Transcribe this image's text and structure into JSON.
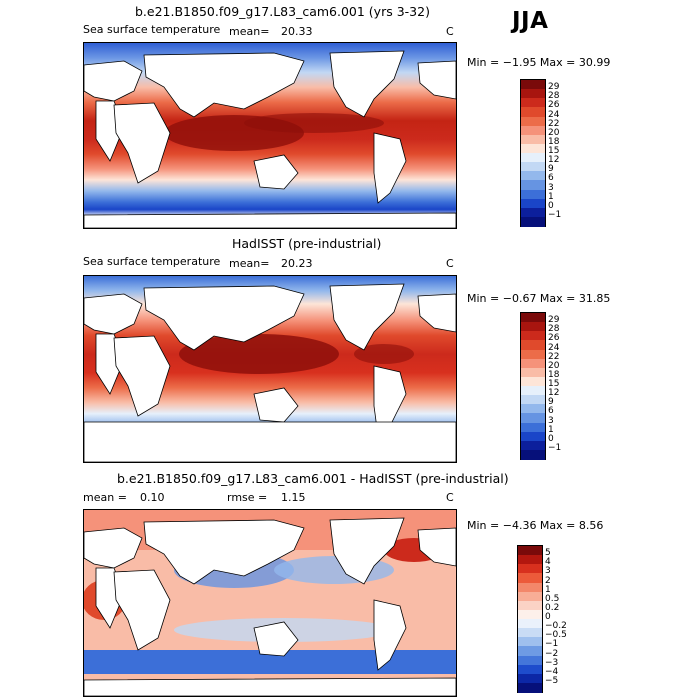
{
  "season": "JJA",
  "panels": [
    {
      "id": "model",
      "title": "b.e21.B1850.f09_g17.L83_cam6.001 (yrs 3-32)",
      "variable": "Sea surface temperature",
      "mean_label": "mean=",
      "mean_value": "20.33",
      "units": "C",
      "min_max": "Min =  −1.95  Max =   30.99",
      "colorbar_labels": [
        "29",
        "28",
        "26",
        "24",
        "22",
        "20",
        "18",
        "15",
        "12",
        "9",
        "6",
        "3",
        "1",
        "0",
        "−1"
      ],
      "colorbar_colors": [
        "#7a0a0a",
        "#a8150f",
        "#cc2a1c",
        "#e04a2c",
        "#ec6c49",
        "#f5927a",
        "#f9bca7",
        "#fde5d8",
        "#e6f0fb",
        "#c2d8f4",
        "#93b8ec",
        "#6694e2",
        "#3c6fd8",
        "#1a45c8",
        "#0c1f9c",
        "#06107a"
      ]
    },
    {
      "id": "obs",
      "title": "HadISST (pre-industrial)",
      "variable": "Sea surface temperature",
      "mean_label": "mean=",
      "mean_value": "20.23",
      "units": "C",
      "min_max": "Min =  −0.67  Max =   31.85",
      "colorbar_labels": [
        "29",
        "28",
        "26",
        "24",
        "22",
        "20",
        "18",
        "15",
        "12",
        "9",
        "6",
        "3",
        "1",
        "0",
        "−1"
      ],
      "colorbar_colors": [
        "#7a0a0a",
        "#a8150f",
        "#cc2a1c",
        "#e04a2c",
        "#ec6c49",
        "#f5927a",
        "#f9bca7",
        "#fde5d8",
        "#e6f0fb",
        "#c2d8f4",
        "#93b8ec",
        "#6694e2",
        "#3c6fd8",
        "#1a45c8",
        "#0c1f9c",
        "#06107a"
      ]
    },
    {
      "id": "diff",
      "title": "b.e21.B1850.f09_g17.L83_cam6.001 - HadISST (pre-industrial)",
      "mean_label": "mean =",
      "mean_value": "0.10",
      "rmse_label": "rmse =",
      "rmse_value": "1.15",
      "units": "C",
      "min_max": "Min =  −4.36  Max =    8.56",
      "colorbar_labels": [
        "5",
        "4",
        "3",
        "2",
        "1",
        "0.5",
        "0.2",
        "0",
        "−0.2",
        "−0.5",
        "−1",
        "−2",
        "−3",
        "−4",
        "−5"
      ],
      "colorbar_colors": [
        "#7a0a0a",
        "#b3170f",
        "#d8301e",
        "#ec5a3a",
        "#f3876a",
        "#f8ad96",
        "#fbd3c5",
        "#fdf0ea",
        "#eaf1fb",
        "#c9dcf5",
        "#9fc0ee",
        "#6e9be4",
        "#4476da",
        "#1e4ccc",
        "#0c27a6",
        "#06107a"
      ]
    }
  ]
}
